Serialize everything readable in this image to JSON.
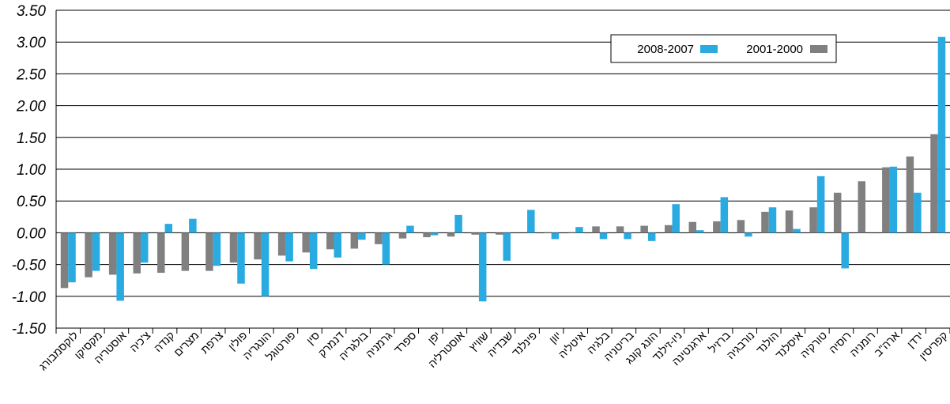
{
  "chart_data": {
    "type": "bar",
    "categories": [
      "לוקסמבורג",
      "מקסיקו",
      "אוסטריה",
      "צ'כיה",
      "קנדה",
      "מצרים",
      "צרפת",
      "פולין",
      "הונגריה",
      "פורטוגל",
      "סין",
      "דנמרק",
      "בולגריה",
      "גרמניה",
      "ספרד",
      "יפן",
      "אוסטרליה",
      "שוויץ",
      "שבדיה",
      "פינלנד",
      "יוון",
      "איטליה",
      "בלגיה",
      "בריטניה",
      "הונג קונג",
      "ניו-זילנד",
      "ארגנטינה",
      "ברזיל",
      "נורבגיה",
      "הולנד",
      "איסלנד",
      "טורקיה",
      "רוסיה",
      "רומניה",
      "ארה\"ב",
      "ירדן",
      "קפריסין"
    ],
    "series": [
      {
        "name": "2001-2000",
        "color": "#808080",
        "values": [
          -0.87,
          -0.7,
          -0.66,
          -0.64,
          -0.63,
          -0.6,
          -0.6,
          -0.47,
          -0.42,
          -0.36,
          -0.31,
          -0.26,
          -0.25,
          -0.18,
          -0.09,
          -0.07,
          -0.06,
          -0.03,
          -0.03,
          0.0,
          0.01,
          0.01,
          0.1,
          0.1,
          0.11,
          0.12,
          0.17,
          0.18,
          0.2,
          0.33,
          0.35,
          0.4,
          0.63,
          0.81,
          1.03,
          1.2,
          1.55
        ]
      },
      {
        "name": "2008-2007",
        "color": "#29abe2",
        "values": [
          -0.78,
          -0.6,
          -1.07,
          -0.47,
          0.14,
          0.22,
          -0.52,
          -0.8,
          -1.0,
          -0.45,
          -0.57,
          -0.39,
          -0.11,
          -0.5,
          0.11,
          -0.04,
          0.28,
          -1.08,
          -0.44,
          0.36,
          -0.1,
          0.09,
          -0.1,
          -0.1,
          -0.13,
          0.45,
          0.04,
          0.56,
          -0.06,
          0.4,
          0.06,
          0.89,
          -0.56,
          0.0,
          1.04,
          0.63,
          3.08
        ]
      }
    ],
    "y_ticks": [
      "3.50",
      "3.00",
      "2.50",
      "2.00",
      "1.50",
      "1.00",
      "0.50",
      "0.00",
      "-0.50",
      "-1.00",
      "-1.50"
    ],
    "ylim": [
      -1.5,
      3.5
    ],
    "grid": true,
    "legend_position": "top-right"
  }
}
